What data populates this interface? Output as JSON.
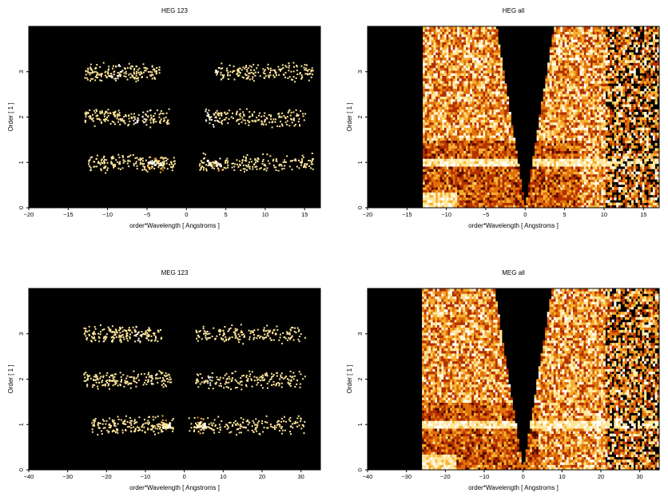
{
  "figure": {
    "background": "#ffffff",
    "plot_background": "#000000",
    "colormap": [
      "#000000",
      "#5a0a00",
      "#b23000",
      "#e0700a",
      "#f7b030",
      "#ffe69a",
      "#ffffff"
    ]
  },
  "chart_data": [
    {
      "type": "heatmap",
      "title": "HEG 123",
      "xlabel": "order*Wavelength [ Angstroms ]",
      "ylabel": "Order [ 1 ]",
      "xlim": [
        -20,
        17
      ],
      "ylim": [
        0,
        4
      ],
      "xticks": [
        -20,
        -15,
        -10,
        -5,
        0,
        5,
        10,
        15
      ],
      "yticks": [
        0,
        1,
        2,
        3
      ],
      "kind": "orders",
      "bands": [
        {
          "order": 1,
          "x_range": [
            -12.5,
            -1.5
          ],
          "gap": [
            -1.5,
            1.5
          ],
          "x_range_pos": [
            1.5,
            16
          ],
          "peaks": [
            -4.0,
            3.5
          ]
        },
        {
          "order": 2,
          "x_range": [
            -13,
            -2.3
          ],
          "gap": [
            -2.3,
            2.3
          ],
          "x_range_pos": [
            2.3,
            15
          ],
          "peaks": [
            -6.0,
            3.0
          ]
        },
        {
          "order": 3,
          "x_range": [
            -13,
            -3.5
          ],
          "gap": [
            -3.5,
            3.5
          ],
          "x_range_pos": [
            3.5,
            16
          ],
          "peaks": [
            -9.0,
            3.5
          ]
        }
      ]
    },
    {
      "type": "heatmap",
      "title": "HEG all",
      "xlabel": "order*Wavelength [ Angstroms ]",
      "ylabel": "Order [ 1 ]",
      "xlim": [
        -20,
        17
      ],
      "ylim": [
        0,
        4
      ],
      "xticks": [
        -20,
        -15,
        -10,
        -5,
        0,
        5,
        10,
        15
      ],
      "yticks": [
        0,
        1,
        2,
        3
      ],
      "kind": "all",
      "data_xmin": -13,
      "step_order": 1.5,
      "step_xmin": -13,
      "step_xmax": 7
    },
    {
      "type": "heatmap",
      "title": "MEG 123",
      "xlabel": "order*Wavelength [ Angstroms ]",
      "ylabel": "Order [ 1 ]",
      "xlim": [
        -40,
        35
      ],
      "ylim": [
        0,
        4
      ],
      "xticks": [
        -40,
        -30,
        -20,
        -10,
        0,
        10,
        20,
        30
      ],
      "yticks": [
        0,
        1,
        2,
        3
      ],
      "kind": "orders",
      "bands": [
        {
          "order": 1,
          "x_range": [
            -24,
            -3
          ],
          "gap": [
            -3,
            1
          ],
          "x_range_pos": [
            1,
            31
          ],
          "peaks": [
            -5.0,
            4.0
          ]
        },
        {
          "order": 2,
          "x_range": [
            -26,
            -3.5
          ],
          "gap": [
            -3.5,
            2.5
          ],
          "x_range_pos": [
            2.5,
            31
          ],
          "peaks": [
            -8.0,
            6.0
          ]
        },
        {
          "order": 3,
          "x_range": [
            -26,
            -6
          ],
          "gap": [
            -6,
            2.5
          ],
          "x_range_pos": [
            2.5,
            31
          ],
          "peaks": [
            -12.0,
            6.0
          ]
        }
      ]
    },
    {
      "type": "heatmap",
      "title": "MEG all",
      "xlabel": "order*Wavelength [ Angstroms ]",
      "ylabel": "Order [ 1 ]",
      "xlim": [
        -40,
        35
      ],
      "ylim": [
        0,
        4
      ],
      "xticks": [
        -40,
        -30,
        -20,
        -10,
        0,
        10,
        20,
        30
      ],
      "yticks": [
        0,
        1,
        2,
        3
      ],
      "kind": "all",
      "data_xmin": -26,
      "step_order": 1.5,
      "step_xmin": -26,
      "step_xmax": 4
    }
  ]
}
